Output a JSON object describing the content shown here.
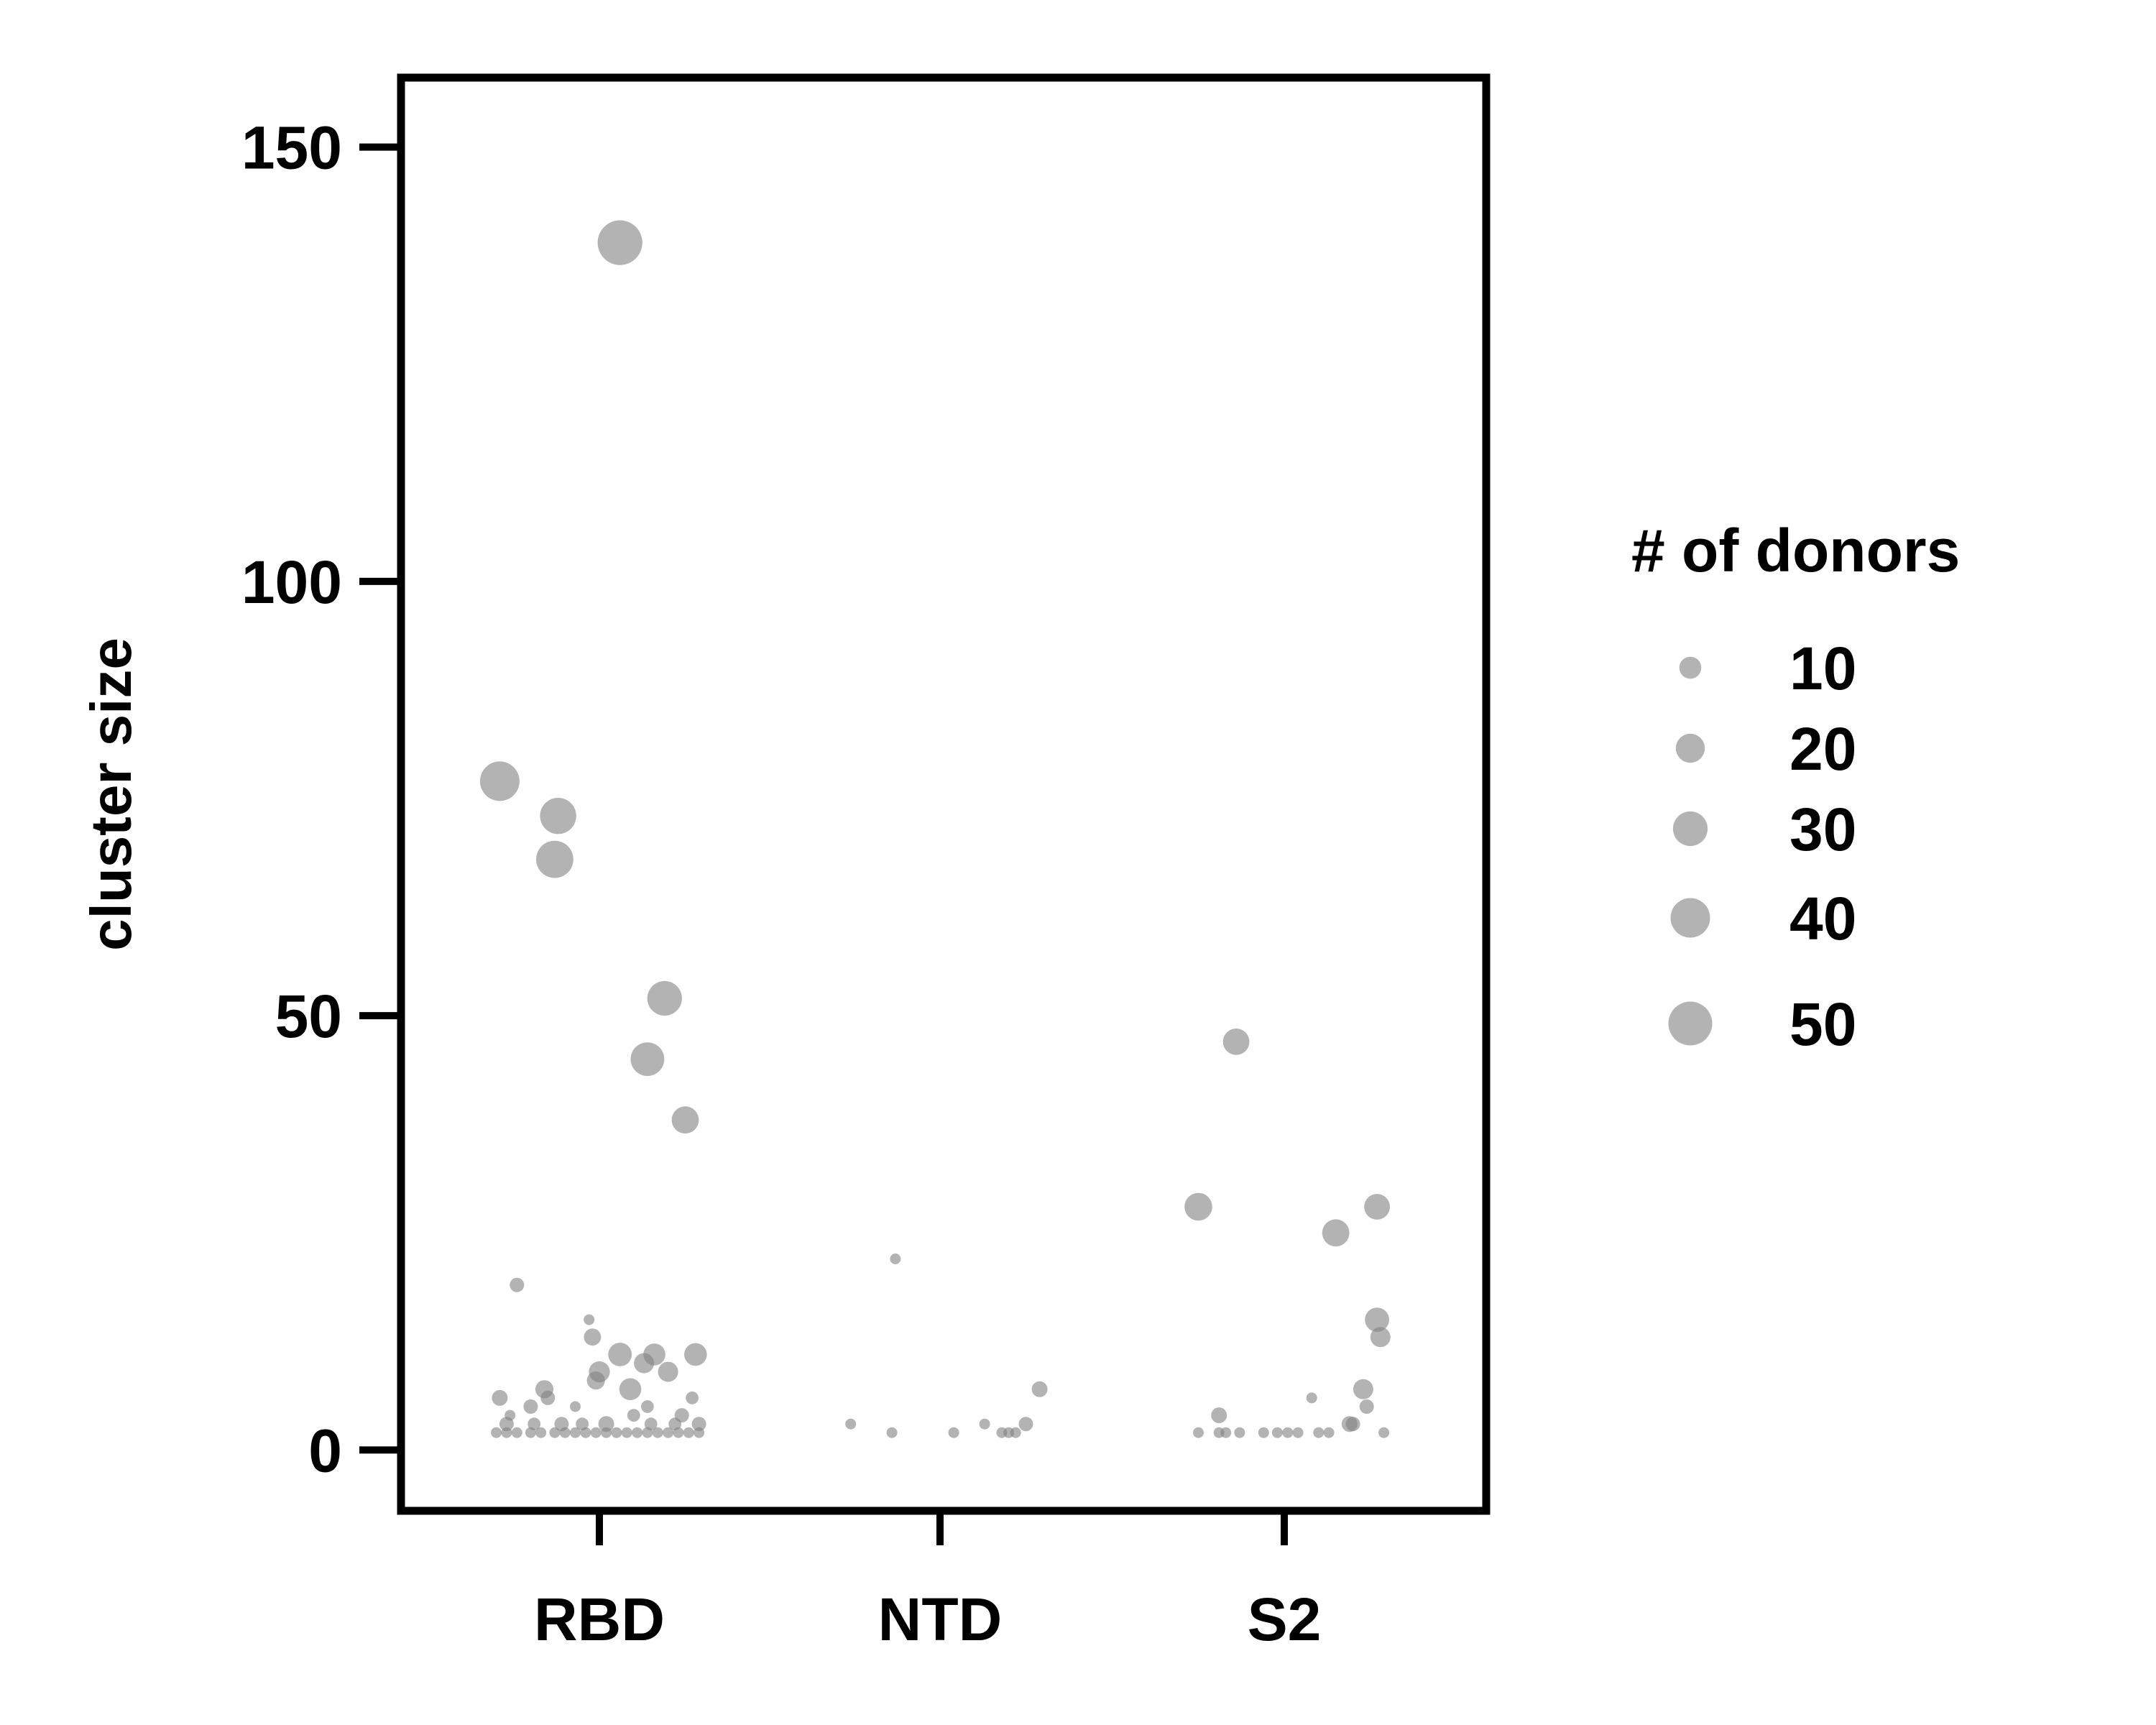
{
  "chart_data": {
    "type": "scatter",
    "title": "",
    "xlabel": "",
    "ylabel": "cluster size",
    "categories": [
      "RBD",
      "NTD",
      "S2"
    ],
    "ylim": [
      -7,
      158
    ],
    "yticks": [
      0,
      50,
      100,
      150
    ],
    "grid": false,
    "marker_color": "#808080",
    "marker_opacity": 0.6,
    "legend": {
      "title": "# of donors",
      "placement": "right",
      "entries": [
        {
          "label": "10",
          "donors": 10
        },
        {
          "label": "20",
          "donors": 20
        },
        {
          "label": "30",
          "donors": 30
        },
        {
          "label": "40",
          "donors": 40
        },
        {
          "label": "50",
          "donors": 50
        }
      ]
    },
    "points": [
      {
        "category": "RBD",
        "jitter": 0.06,
        "y": 139,
        "donors": 52
      },
      {
        "category": "RBD",
        "jitter": -0.29,
        "y": 77,
        "donors": 40
      },
      {
        "category": "RBD",
        "jitter": -0.12,
        "y": 73,
        "donors": 33
      },
      {
        "category": "RBD",
        "jitter": -0.13,
        "y": 68,
        "donors": 35
      },
      {
        "category": "RBD",
        "jitter": 0.19,
        "y": 52,
        "donors": 30
      },
      {
        "category": "RBD",
        "jitter": 0.14,
        "y": 45,
        "donors": 28
      },
      {
        "category": "RBD",
        "jitter": 0.25,
        "y": 38,
        "donors": 17
      },
      {
        "category": "RBD",
        "jitter": -0.24,
        "y": 19,
        "donors": 3
      },
      {
        "category": "RBD",
        "jitter": -0.03,
        "y": 15,
        "donors": 1
      },
      {
        "category": "RBD",
        "jitter": -0.02,
        "y": 13,
        "donors": 5
      },
      {
        "category": "RBD",
        "jitter": 0.06,
        "y": 11,
        "donors": 12
      },
      {
        "category": "RBD",
        "jitter": 0.16,
        "y": 11,
        "donors": 10
      },
      {
        "category": "RBD",
        "jitter": 0.28,
        "y": 11,
        "donors": 11
      },
      {
        "category": "RBD",
        "jitter": 0.13,
        "y": 10,
        "donors": 8
      },
      {
        "category": "RBD",
        "jitter": 0.0,
        "y": 9,
        "donors": 9
      },
      {
        "category": "RBD",
        "jitter": 0.2,
        "y": 9,
        "donors": 8
      },
      {
        "category": "RBD",
        "jitter": -0.01,
        "y": 8,
        "donors": 6
      },
      {
        "category": "RBD",
        "jitter": 0.09,
        "y": 7,
        "donors": 10
      },
      {
        "category": "RBD",
        "jitter": -0.16,
        "y": 7,
        "donors": 6
      },
      {
        "category": "RBD",
        "jitter": -0.29,
        "y": 6,
        "donors": 4
      },
      {
        "category": "RBD",
        "jitter": -0.15,
        "y": 6,
        "donors": 3
      },
      {
        "category": "RBD",
        "jitter": 0.27,
        "y": 6,
        "donors": 2
      },
      {
        "category": "RBD",
        "jitter": -0.2,
        "y": 5,
        "donors": 3
      },
      {
        "category": "RBD",
        "jitter": -0.07,
        "y": 5,
        "donors": 1
      },
      {
        "category": "RBD",
        "jitter": 0.14,
        "y": 5,
        "donors": 2
      },
      {
        "category": "RBD",
        "jitter": -0.26,
        "y": 4,
        "donors": 1
      },
      {
        "category": "RBD",
        "jitter": 0.1,
        "y": 4,
        "donors": 2
      },
      {
        "category": "RBD",
        "jitter": 0.24,
        "y": 4,
        "donors": 3
      },
      {
        "category": "RBD",
        "jitter": -0.27,
        "y": 3,
        "donors": 3
      },
      {
        "category": "RBD",
        "jitter": -0.19,
        "y": 3,
        "donors": 2
      },
      {
        "category": "RBD",
        "jitter": -0.11,
        "y": 3,
        "donors": 3
      },
      {
        "category": "RBD",
        "jitter": -0.05,
        "y": 3,
        "donors": 2
      },
      {
        "category": "RBD",
        "jitter": 0.02,
        "y": 3,
        "donors": 4
      },
      {
        "category": "RBD",
        "jitter": 0.15,
        "y": 3,
        "donors": 2
      },
      {
        "category": "RBD",
        "jitter": 0.22,
        "y": 3,
        "donors": 2
      },
      {
        "category": "RBD",
        "jitter": 0.29,
        "y": 3,
        "donors": 3
      },
      {
        "category": "RBD",
        "jitter": -0.3,
        "y": 2,
        "donors": 1
      },
      {
        "category": "RBD",
        "jitter": -0.27,
        "y": 2,
        "donors": 1
      },
      {
        "category": "RBD",
        "jitter": -0.24,
        "y": 2,
        "donors": 1
      },
      {
        "category": "RBD",
        "jitter": -0.2,
        "y": 2,
        "donors": 1
      },
      {
        "category": "RBD",
        "jitter": -0.17,
        "y": 2,
        "donors": 1
      },
      {
        "category": "RBD",
        "jitter": -0.13,
        "y": 2,
        "donors": 1
      },
      {
        "category": "RBD",
        "jitter": -0.1,
        "y": 2,
        "donors": 1
      },
      {
        "category": "RBD",
        "jitter": -0.07,
        "y": 2,
        "donors": 1
      },
      {
        "category": "RBD",
        "jitter": -0.04,
        "y": 2,
        "donors": 1
      },
      {
        "category": "RBD",
        "jitter": -0.01,
        "y": 2,
        "donors": 1
      },
      {
        "category": "RBD",
        "jitter": 0.02,
        "y": 2,
        "donors": 1
      },
      {
        "category": "RBD",
        "jitter": 0.05,
        "y": 2,
        "donors": 1
      },
      {
        "category": "RBD",
        "jitter": 0.08,
        "y": 2,
        "donors": 1
      },
      {
        "category": "RBD",
        "jitter": 0.11,
        "y": 2,
        "donors": 1
      },
      {
        "category": "RBD",
        "jitter": 0.14,
        "y": 2,
        "donors": 1
      },
      {
        "category": "RBD",
        "jitter": 0.17,
        "y": 2,
        "donors": 1
      },
      {
        "category": "RBD",
        "jitter": 0.2,
        "y": 2,
        "donors": 1
      },
      {
        "category": "RBD",
        "jitter": 0.23,
        "y": 2,
        "donors": 1
      },
      {
        "category": "RBD",
        "jitter": 0.26,
        "y": 2,
        "donors": 1
      },
      {
        "category": "RBD",
        "jitter": 0.29,
        "y": 2,
        "donors": 1
      },
      {
        "category": "NTD",
        "jitter": -0.13,
        "y": 22,
        "donors": 1
      },
      {
        "category": "NTD",
        "jitter": 0.29,
        "y": 7,
        "donors": 4
      },
      {
        "category": "NTD",
        "jitter": 0.25,
        "y": 3,
        "donors": 3
      },
      {
        "category": "NTD",
        "jitter": -0.26,
        "y": 3,
        "donors": 1
      },
      {
        "category": "NTD",
        "jitter": 0.13,
        "y": 3,
        "donors": 1
      },
      {
        "category": "NTD",
        "jitter": -0.14,
        "y": 2,
        "donors": 1
      },
      {
        "category": "NTD",
        "jitter": 0.04,
        "y": 2,
        "donors": 1
      },
      {
        "category": "NTD",
        "jitter": 0.18,
        "y": 2,
        "donors": 1
      },
      {
        "category": "NTD",
        "jitter": 0.2,
        "y": 2,
        "donors": 1
      },
      {
        "category": "NTD",
        "jitter": 0.22,
        "y": 2,
        "donors": 1
      },
      {
        "category": "S2",
        "jitter": -0.14,
        "y": 47,
        "donors": 16
      },
      {
        "category": "S2",
        "jitter": -0.25,
        "y": 28,
        "donors": 18
      },
      {
        "category": "S2",
        "jitter": 0.15,
        "y": 25,
        "donors": 17
      },
      {
        "category": "S2",
        "jitter": 0.27,
        "y": 28,
        "donors": 15
      },
      {
        "category": "S2",
        "jitter": 0.27,
        "y": 15,
        "donors": 13
      },
      {
        "category": "S2",
        "jitter": 0.28,
        "y": 13,
        "donors": 8
      },
      {
        "category": "S2",
        "jitter": 0.23,
        "y": 7,
        "donors": 8
      },
      {
        "category": "S2",
        "jitter": 0.24,
        "y": 5,
        "donors": 3
      },
      {
        "category": "S2",
        "jitter": 0.19,
        "y": 3,
        "donors": 4
      },
      {
        "category": "S2",
        "jitter": 0.2,
        "y": 3,
        "donors": 3
      },
      {
        "category": "S2",
        "jitter": -0.19,
        "y": 4,
        "donors": 4
      },
      {
        "category": "S2",
        "jitter": 0.08,
        "y": 6,
        "donors": 1
      },
      {
        "category": "S2",
        "jitter": -0.25,
        "y": 2,
        "donors": 1
      },
      {
        "category": "S2",
        "jitter": -0.19,
        "y": 2,
        "donors": 1
      },
      {
        "category": "S2",
        "jitter": -0.17,
        "y": 2,
        "donors": 1
      },
      {
        "category": "S2",
        "jitter": -0.13,
        "y": 2,
        "donors": 1
      },
      {
        "category": "S2",
        "jitter": -0.06,
        "y": 2,
        "donors": 1
      },
      {
        "category": "S2",
        "jitter": -0.02,
        "y": 2,
        "donors": 1
      },
      {
        "category": "S2",
        "jitter": 0.01,
        "y": 2,
        "donors": 1
      },
      {
        "category": "S2",
        "jitter": 0.04,
        "y": 2,
        "donors": 1
      },
      {
        "category": "S2",
        "jitter": 0.1,
        "y": 2,
        "donors": 1
      },
      {
        "category": "S2",
        "jitter": 0.13,
        "y": 2,
        "donors": 1
      },
      {
        "category": "S2",
        "jitter": 0.29,
        "y": 2,
        "donors": 1
      }
    ]
  }
}
